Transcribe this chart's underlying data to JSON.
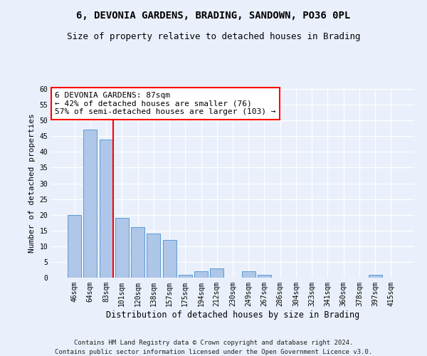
{
  "title1": "6, DEVONIA GARDENS, BRADING, SANDOWN, PO36 0PL",
  "title2": "Size of property relative to detached houses in Brading",
  "xlabel": "Distribution of detached houses by size in Brading",
  "ylabel": "Number of detached properties",
  "categories": [
    "46sqm",
    "64sqm",
    "83sqm",
    "101sqm",
    "120sqm",
    "138sqm",
    "157sqm",
    "175sqm",
    "194sqm",
    "212sqm",
    "230sqm",
    "249sqm",
    "267sqm",
    "286sqm",
    "304sqm",
    "323sqm",
    "341sqm",
    "360sqm",
    "378sqm",
    "397sqm",
    "415sqm"
  ],
  "values": [
    20,
    47,
    44,
    19,
    16,
    14,
    12,
    1,
    2,
    3,
    0,
    2,
    1,
    0,
    0,
    0,
    0,
    0,
    0,
    1,
    0
  ],
  "bar_color": "#aec6e8",
  "bar_edge_color": "#5b9bd5",
  "red_line_x": 2,
  "annotation_text": "6 DEVONIA GARDENS: 87sqm\n← 42% of detached houses are smaller (76)\n57% of semi-detached houses are larger (103) →",
  "annotation_box_color": "white",
  "annotation_box_edge_color": "red",
  "ylim": [
    0,
    60
  ],
  "yticks": [
    0,
    5,
    10,
    15,
    20,
    25,
    30,
    35,
    40,
    45,
    50,
    55,
    60
  ],
  "footer1": "Contains HM Land Registry data © Crown copyright and database right 2024.",
  "footer2": "Contains public sector information licensed under the Open Government Licence v3.0.",
  "bg_color": "#eaf0fb",
  "plot_bg_color": "#eaf0fb",
  "grid_color": "white",
  "title1_fontsize": 10,
  "title2_fontsize": 9,
  "xlabel_fontsize": 8.5,
  "ylabel_fontsize": 8,
  "tick_fontsize": 7,
  "annotation_fontsize": 8,
  "footer_fontsize": 6.5
}
